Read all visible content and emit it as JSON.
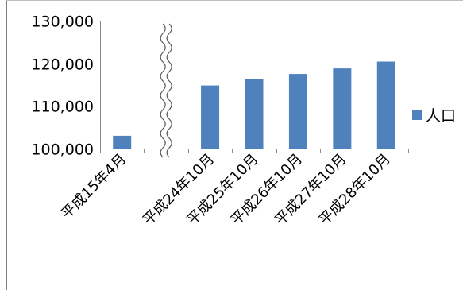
{
  "chart_data": {
    "type": "bar",
    "categories": [
      "平成15年4月",
      "",
      "平成24年10月",
      "平成25年10月",
      "平成26年10月",
      "平成27年10月",
      "平成28年10月"
    ],
    "values": [
      103000,
      null,
      114800,
      116300,
      117500,
      118800,
      120400
    ],
    "ylim": [
      100000,
      130000
    ],
    "y_ticks": [
      100000,
      110000,
      120000,
      130000
    ],
    "y_tick_labels": [
      "100,000",
      "110,000",
      "120,000",
      "130,000"
    ],
    "grid": true,
    "axis_break": "between 平成15年4月 and 平成24年10月",
    "legend_position": "right",
    "series": [
      {
        "name": "人口",
        "color": "#4F81BD"
      }
    ]
  }
}
